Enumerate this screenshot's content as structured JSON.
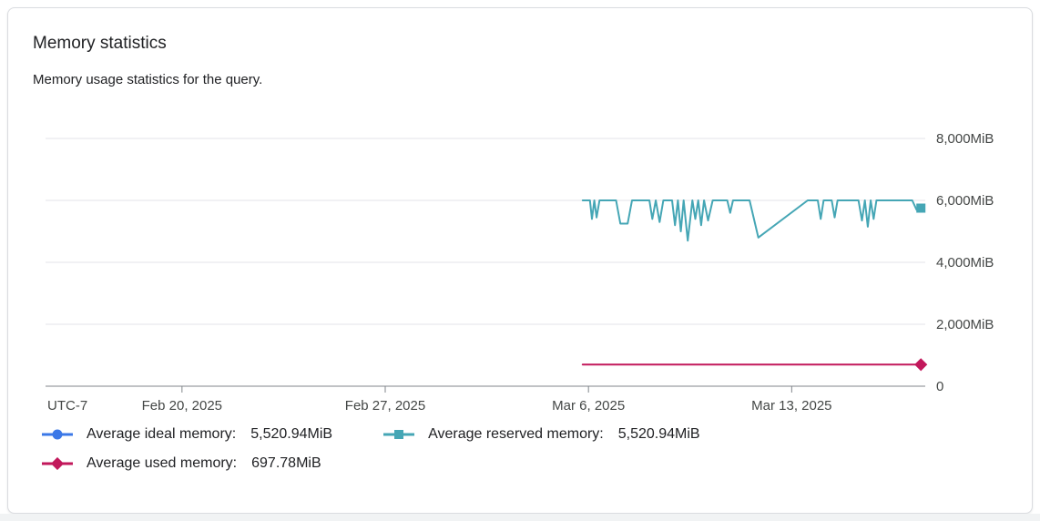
{
  "card": {
    "title": "Memory statistics",
    "subtitle": "Memory usage statistics for the query."
  },
  "ui": {
    "card_border": "#DADCE0",
    "grid_color": "#E3E3E8",
    "axis_color": "#80868B",
    "tick_text_color": "#444746",
    "text_primary": "#202124",
    "page_strip": "#F1F3F4"
  },
  "chart_data": {
    "type": "line",
    "title": "Memory statistics",
    "x_axis": {
      "timezone_label": "UTC-7",
      "tick_days": [
        0,
        7,
        14,
        21
      ],
      "tick_labels": [
        "Feb 20, 2025",
        "Feb 27, 2025",
        "Mar 6, 2025",
        "Mar 13, 2025"
      ],
      "range_days": [
        -4.7,
        25.6
      ],
      "unit": "date"
    },
    "y_axis": {
      "tick_values": [
        0,
        2000,
        4000,
        6000,
        8000
      ],
      "tick_labels": [
        "0",
        "2,000MiB",
        "4,000MiB",
        "6,000MiB",
        "8,000MiB"
      ],
      "range": [
        0,
        8000
      ],
      "unit": "MiB"
    },
    "grid": true,
    "legend_position": "bottom",
    "series": [
      {
        "name": "Average ideal memory",
        "average": "5,520.94MiB",
        "color": "#3B78E7",
        "marker": "circle",
        "points": []
      },
      {
        "name": "Average reserved memory",
        "average": "5,520.94MiB",
        "color": "#45A6B5",
        "marker": "square",
        "points": [
          [
            13.8,
            6000
          ],
          [
            14.05,
            6000
          ],
          [
            14.12,
            5400
          ],
          [
            14.2,
            6000
          ],
          [
            14.28,
            5450
          ],
          [
            14.38,
            6000
          ],
          [
            14.95,
            6000
          ],
          [
            15.1,
            5250
          ],
          [
            15.35,
            5250
          ],
          [
            15.5,
            6000
          ],
          [
            16.1,
            6000
          ],
          [
            16.2,
            5400
          ],
          [
            16.32,
            6000
          ],
          [
            16.45,
            5300
          ],
          [
            16.58,
            6000
          ],
          [
            16.88,
            6000
          ],
          [
            16.98,
            5200
          ],
          [
            17.08,
            6000
          ],
          [
            17.18,
            5000
          ],
          [
            17.28,
            6000
          ],
          [
            17.42,
            4700
          ],
          [
            17.58,
            6000
          ],
          [
            17.68,
            5400
          ],
          [
            17.78,
            6000
          ],
          [
            17.88,
            5200
          ],
          [
            17.98,
            6000
          ],
          [
            18.12,
            5350
          ],
          [
            18.28,
            6000
          ],
          [
            18.78,
            6000
          ],
          [
            18.88,
            5600
          ],
          [
            18.98,
            6000
          ],
          [
            19.55,
            6000
          ],
          [
            19.85,
            4800
          ],
          [
            21.55,
            6000
          ],
          [
            21.9,
            6000
          ],
          [
            22.0,
            5400
          ],
          [
            22.1,
            6000
          ],
          [
            22.38,
            6000
          ],
          [
            22.48,
            5450
          ],
          [
            22.58,
            6000
          ],
          [
            23.3,
            6000
          ],
          [
            23.42,
            5350
          ],
          [
            23.52,
            6000
          ],
          [
            23.62,
            5150
          ],
          [
            23.72,
            6000
          ],
          [
            23.82,
            5400
          ],
          [
            23.92,
            6000
          ],
          [
            25.15,
            6000
          ],
          [
            25.3,
            5700
          ],
          [
            25.45,
            5750
          ]
        ]
      },
      {
        "name": "Average used memory",
        "average": "697.78MiB",
        "color": "#C2185B",
        "marker": "diamond",
        "points": [
          [
            13.8,
            698
          ],
          [
            25.45,
            698
          ]
        ]
      }
    ],
    "legend": [
      {
        "id": "ideal-memory",
        "label": "Average ideal memory:",
        "value": "5,520.94MiB",
        "color": "#3B78E7",
        "marker": "circle"
      },
      {
        "id": "reserved-memory",
        "label": "Average reserved memory:",
        "value": "5,520.94MiB",
        "color": "#45A6B5",
        "marker": "square"
      },
      {
        "id": "used-memory",
        "label": "Average used memory:",
        "value": "697.78MiB",
        "color": "#C2185B",
        "marker": "diamond"
      }
    ]
  }
}
